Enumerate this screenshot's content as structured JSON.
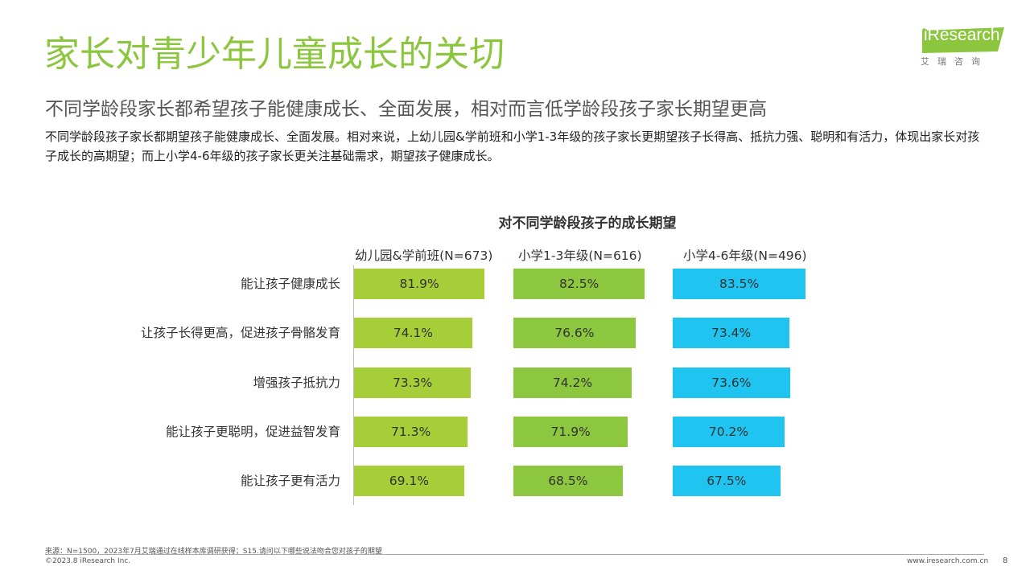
{
  "header": {
    "title": "家长对青少年儿童成长的关切",
    "subtitle": "不同学龄段家长都希望孩子能健康成长、全面发展，相对而言低学龄段孩子家长期望更高",
    "description": "不同学龄段孩子家长都期望孩子能健康成长、全面发展。相对来说，上幼儿园&学前班和小学1-3年级的孩子家长更期望孩子长得高、抵抗力强、聪明和有活力，体现出家长对孩子成长的高期望；而上小学4-6年级的孩子家长更关注基础需求，期望孩子健康成长。"
  },
  "logo": {
    "text": "iResearch",
    "sub": "艾瑞咨询"
  },
  "chart_data": {
    "type": "bar",
    "orientation": "horizontal",
    "title": "对不同学龄段孩子的成长期望",
    "categories": [
      "能让孩子健康成长",
      "让孩子长得更高，促进孩子骨骼发育",
      "增强孩子抵抗力",
      "能让孩子更聪明，促进益智发育",
      "能让孩子更有活力"
    ],
    "series": [
      {
        "name": "幼儿园&学前班(N=673)",
        "color": "#a6ce39",
        "values": [
          81.9,
          74.1,
          73.3,
          71.3,
          69.1
        ]
      },
      {
        "name": "小学1-3年级(N=616)",
        "color": "#8dc63f",
        "values": [
          82.5,
          76.6,
          74.2,
          71.9,
          68.5
        ]
      },
      {
        "name": "小学4-6年级(N=496)",
        "color": "#1fc5f0",
        "values": [
          83.5,
          73.4,
          73.6,
          70.2,
          67.5
        ]
      }
    ],
    "value_suffix": "%",
    "grid": false
  },
  "footer": {
    "source": "来源：N=1500，2023年7月艾瑞通过在线样本库调研获得；S15.请问以下哪些说法吻合您对孩子的期望",
    "copyright": "©2023.8 iResearch Inc.",
    "site": "www.iresearch.com.cn",
    "page": "8"
  }
}
